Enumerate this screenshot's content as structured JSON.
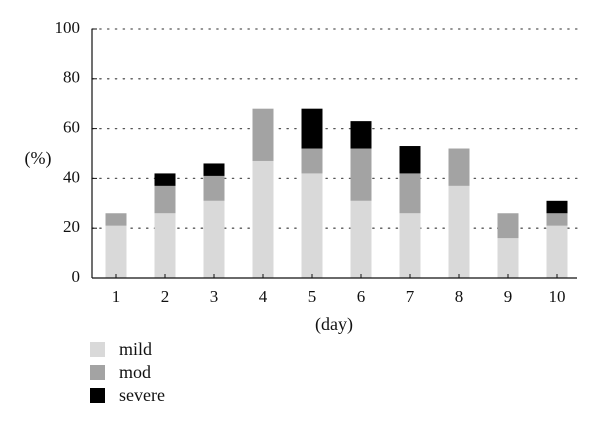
{
  "chart_data": {
    "type": "bar",
    "stacked": true,
    "categories": [
      "1",
      "2",
      "3",
      "4",
      "5",
      "6",
      "7",
      "8",
      "9",
      "10"
    ],
    "series": [
      {
        "name": "mild",
        "color": "#d9d9d9",
        "values": [
          21,
          26,
          31,
          47,
          42,
          31,
          26,
          37,
          16,
          21
        ]
      },
      {
        "name": "mod",
        "color": "#a3a3a3",
        "values": [
          5,
          11,
          10,
          21,
          10,
          21,
          16,
          15,
          10,
          5
        ]
      },
      {
        "name": "severe",
        "color": "#000000",
        "values": [
          0,
          5,
          5,
          0,
          16,
          11,
          11,
          0,
          0,
          5
        ]
      }
    ],
    "xlabel": "(day)",
    "ylabel": "(%)",
    "ylim": [
      0,
      100
    ],
    "yticks": [
      0,
      20,
      40,
      60,
      80,
      100
    ],
    "grid": "horizontal dotted",
    "legend": "bottom-left"
  }
}
